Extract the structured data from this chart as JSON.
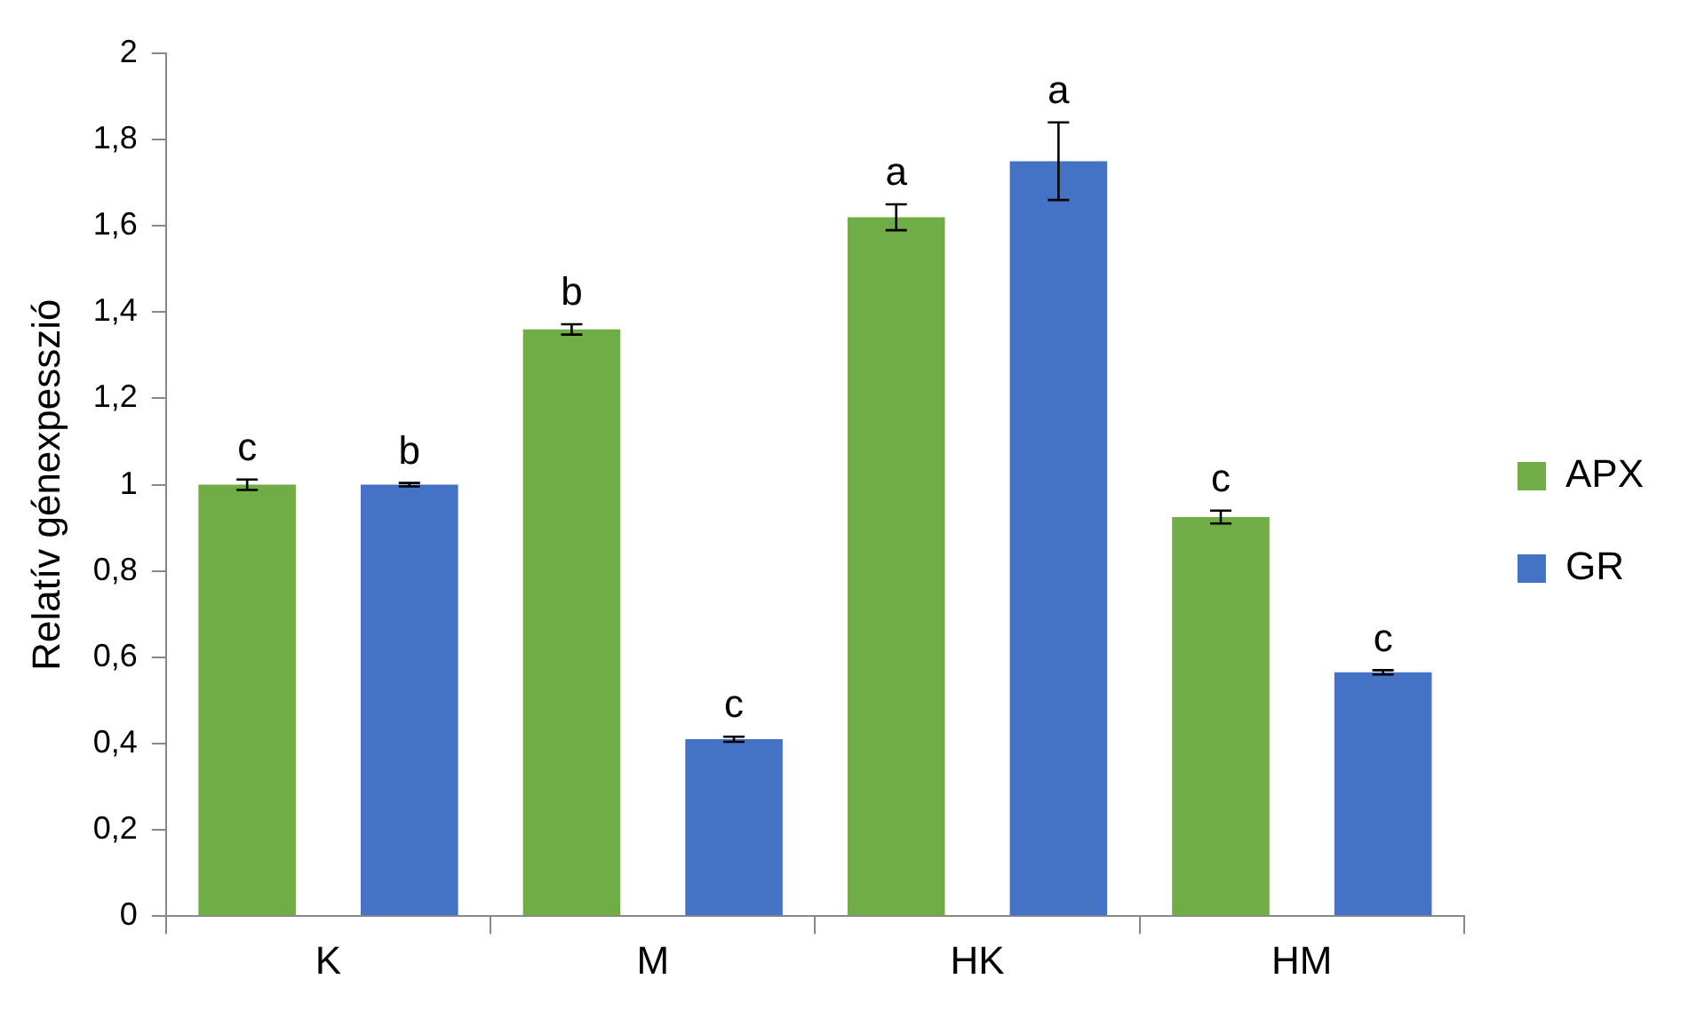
{
  "chart_data": {
    "type": "bar",
    "ylabel": "Relatív génexpesszió",
    "categories": [
      "K",
      "M",
      "HK",
      "HM"
    ],
    "series": [
      {
        "name": "APX",
        "color": "#70ad47",
        "values": [
          1.0,
          1.36,
          1.62,
          0.925
        ],
        "errors": [
          0.012,
          0.012,
          0.03,
          0.015
        ],
        "value_labels": [
          "c",
          "b",
          "a",
          "c"
        ]
      },
      {
        "name": "GR",
        "color": "#4472c4",
        "values": [
          1.0,
          0.41,
          1.75,
          0.565
        ],
        "errors": [
          0.004,
          0.006,
          0.09,
          0.005
        ],
        "value_labels": [
          "b",
          "c",
          "a",
          "c"
        ]
      }
    ],
    "ylim": [
      0,
      2
    ],
    "yticks": [
      0,
      {
        "value": 0.2,
        "label": "0,2"
      },
      {
        "value": 0.4,
        "label": "0,4"
      },
      {
        "value": 0.6,
        "label": "0,6"
      },
      {
        "value": 0.8,
        "label": "0,8"
      },
      1,
      {
        "value": 1.2,
        "label": "1,2"
      },
      {
        "value": 1.4,
        "label": "1,4"
      },
      {
        "value": 1.6,
        "label": "1,6"
      },
      {
        "value": 1.8,
        "label": "1,8"
      },
      2
    ],
    "grid": false,
    "legend": "right"
  }
}
